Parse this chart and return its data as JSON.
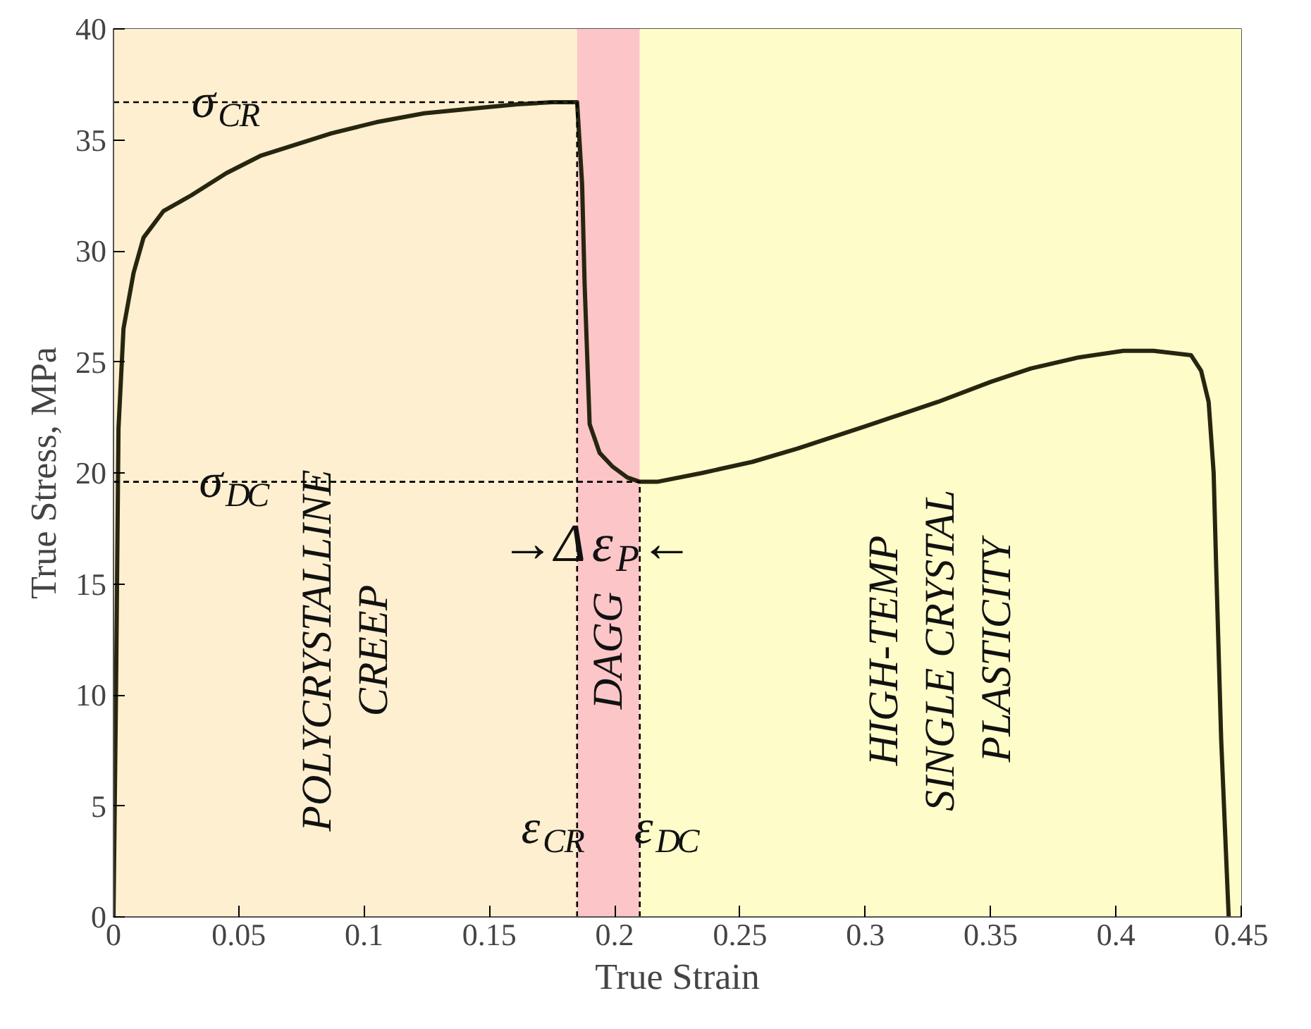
{
  "chart_data": {
    "type": "line",
    "xlabel": "True Strain",
    "ylabel": "True Stress, MPa",
    "xlim": [
      0,
      0.45
    ],
    "ylim": [
      0,
      40
    ],
    "xticks": [
      0,
      0.05,
      0.1,
      0.15,
      0.2,
      0.25,
      0.3,
      0.35,
      0.4,
      0.45
    ],
    "yticks": [
      0,
      5,
      10,
      15,
      20,
      25,
      30,
      35,
      40
    ],
    "grid": false,
    "legend": false,
    "line_style": "solid",
    "series": [
      {
        "color": "#262610",
        "x": [
          0,
          0.001,
          0.002,
          0.004,
          0.008,
          0.012,
          0.02,
          0.031,
          0.045,
          0.059,
          0.073,
          0.087,
          0.105,
          0.124,
          0.142,
          0.161,
          0.175,
          0.185,
          0.187,
          0.188,
          0.19,
          0.194,
          0.199,
          0.205,
          0.21,
          0.217,
          0.235,
          0.255,
          0.273,
          0.3,
          0.329,
          0.35,
          0.366,
          0.385,
          0.403,
          0.415,
          0.43,
          0.434,
          0.437,
          0.439,
          0.44,
          0.442,
          0.445
        ],
        "values": [
          0,
          10,
          22,
          26.5,
          29,
          30.6,
          31.8,
          32.5,
          33.5,
          34.3,
          34.8,
          35.3,
          35.8,
          36.2,
          36.4,
          36.6,
          36.7,
          36.7,
          33,
          28.5,
          22.2,
          20.9,
          20.3,
          19.8,
          19.6,
          19.6,
          20,
          20.5,
          21.1,
          22.1,
          23.2,
          24.1,
          24.7,
          25.2,
          25.5,
          25.5,
          25.3,
          24.6,
          23.2,
          20,
          15.8,
          8,
          0
        ]
      },
      {
        "color": "#000000",
        "line_style": "dashed",
        "x": [
          0,
          0.185
        ],
        "values": [
          36.7,
          36.7
        ]
      },
      {
        "color": "#000000",
        "line_style": "dashed",
        "x": [
          0,
          0.21
        ],
        "values": [
          19.6,
          19.6
        ]
      },
      {
        "name": "ε$_{CR}$",
        "color": "#000000",
        "line_style": "dashed",
        "x": [
          0.185,
          0.185
        ],
        "values": [
          0,
          36.7
        ]
      },
      {
        "name": "ε$_{DC}$",
        "color": "#000000",
        "line_style": "dashed",
        "x": [
          0.21,
          0.21
        ],
        "values": [
          0,
          19.6
        ]
      }
    ],
    "bands": [
      {
        "axis": "x",
        "from": 0,
        "to": 0.185,
        "label": "POLYCRYSTALLINE\nCREEP",
        "color": "#fdefcf"
      },
      {
        "axis": "x",
        "from": 0.185,
        "to": 0.21,
        "label": "DAGG",
        "color": "#fcc5c8"
      },
      {
        "axis": "x",
        "from": 0.21,
        "to": 0.45,
        "label": "HIGH-TEMP\nSINGLE CRYSTAL\nPLASTICITY",
        "color": "#fefdc9"
      }
    ],
    "annotations": [
      {
        "text": "σ$_{CR}$",
        "x": 0.045,
        "y": 36.7
      },
      {
        "text": "σ$_{DC}$",
        "x": 0.048,
        "y": 19.6
      },
      "→Δε$_{P}$←"
    ]
  }
}
